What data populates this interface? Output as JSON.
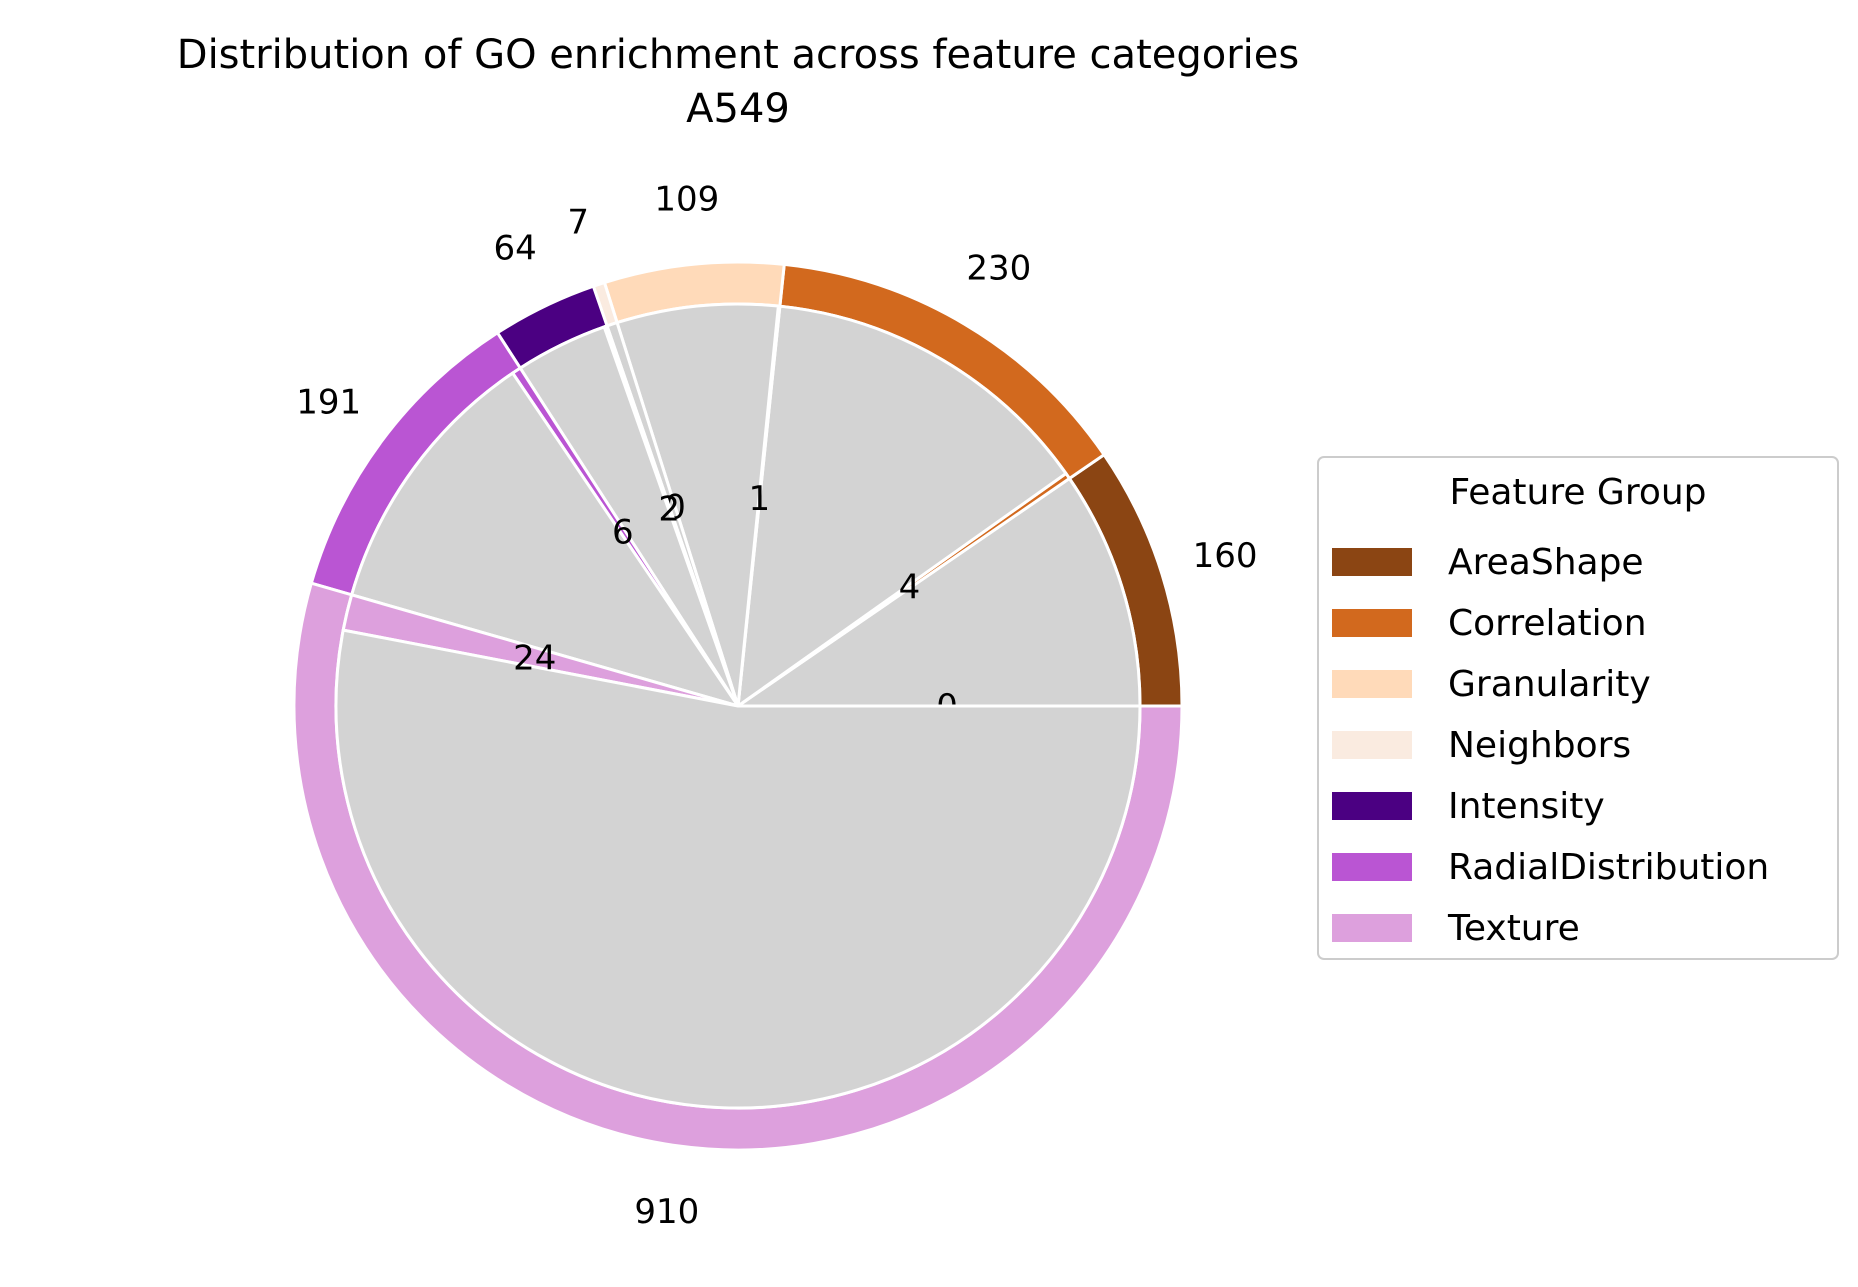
{
  "chart_data": {
    "type": "pie",
    "title": "Distribution of GO enrichment across feature categories",
    "subtitle": "A549",
    "legend_title": "Feature Group",
    "legend_placement": "center-right",
    "enriched_color": "#d3d3d3",
    "groups": [
      {
        "name": "AreaShape",
        "color": "#8b4513",
        "total": 160,
        "enriched": 0
      },
      {
        "name": "Correlation",
        "color": "#d2691e",
        "total": 230,
        "enriched": 4
      },
      {
        "name": "Granularity",
        "color": "#ffdab9",
        "total": 109,
        "enriched": 1
      },
      {
        "name": "Neighbors",
        "color": "#faebe0",
        "total": 7,
        "enriched": 0
      },
      {
        "name": "Intensity",
        "color": "#4b0082",
        "total": 64,
        "enriched": 2
      },
      {
        "name": "RadialDistribution",
        "color": "#ba55d3",
        "total": 191,
        "enriched": 6
      },
      {
        "name": "Texture",
        "color": "#dda0dd",
        "total": 910,
        "enriched": 24
      }
    ]
  }
}
